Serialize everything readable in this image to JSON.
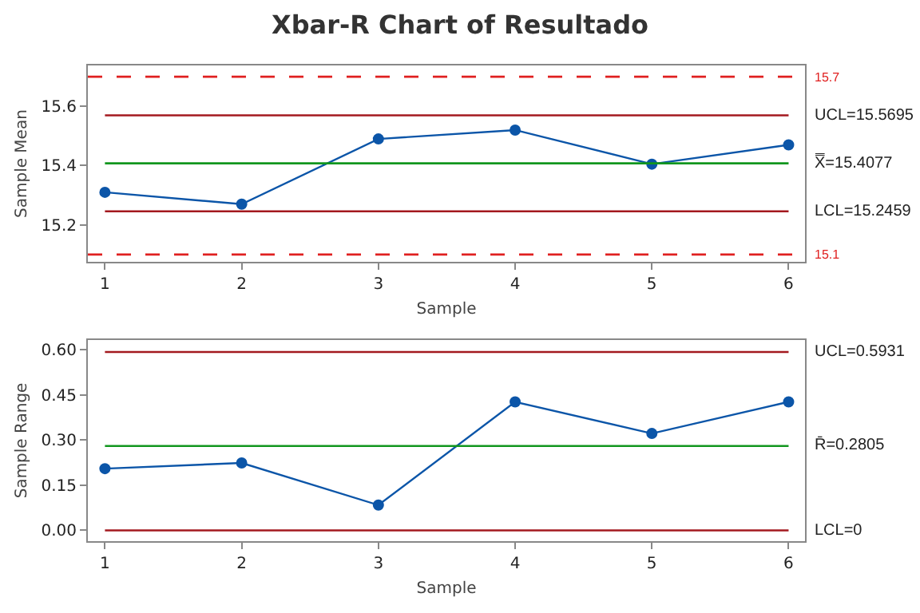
{
  "chart_data": [
    {
      "type": "line",
      "title": "Xbar-R Chart of Resultado",
      "xlabel": "Sample",
      "ylabel": "Sample Mean",
      "x": [
        1,
        2,
        3,
        4,
        5,
        6
      ],
      "series": [
        {
          "color": "#0b55a8",
          "values": [
            15.31,
            15.27,
            15.49,
            15.52,
            15.405,
            15.47
          ]
        }
      ],
      "xlim": [
        0.875,
        6.12
      ],
      "xticks": [
        1,
        2,
        3,
        4,
        5,
        6
      ],
      "ylim": [
        15.075,
        15.738
      ],
      "yticks": [
        15.2,
        15.4,
        15.6
      ],
      "marker": "circle",
      "line_style": "solid",
      "ref_lines": [
        {
          "axis": "y",
          "value": 15.7,
          "label": "15.7",
          "color": "#e02020",
          "line_style": "dashed"
        },
        {
          "axis": "y",
          "value": 15.5695,
          "label": "UCL=15.5695",
          "color": "#a3191f",
          "line_style": "solid"
        },
        {
          "axis": "y",
          "value": 15.4077,
          "label": "X̿=15.4077",
          "color": "#12961e",
          "line_style": "solid"
        },
        {
          "axis": "y",
          "value": 15.2459,
          "label": "LCL=15.2459",
          "color": "#a3191f",
          "line_style": "solid"
        },
        {
          "axis": "y",
          "value": 15.1,
          "label": "15.1",
          "color": "#e02020",
          "line_style": "dashed"
        }
      ]
    },
    {
      "type": "line",
      "xlabel": "Sample",
      "ylabel": "Sample Range",
      "x": [
        1,
        2,
        3,
        4,
        5,
        6
      ],
      "series": [
        {
          "color": "#0b55a8",
          "values": [
            0.205,
            0.224,
            0.084,
            0.427,
            0.322,
            0.427
          ]
        }
      ],
      "xlim": [
        0.875,
        6.12
      ],
      "xticks": [
        1,
        2,
        3,
        4,
        5,
        6
      ],
      "ylim": [
        -0.036,
        0.633
      ],
      "yticks": [
        {
          "value": 0,
          "label": "0.00"
        },
        {
          "value": 0.15,
          "label": "0.15"
        },
        {
          "value": 0.3,
          "label": "0.30"
        },
        {
          "value": 0.45,
          "label": "0.45"
        },
        {
          "value": 0.6,
          "label": "0.60"
        }
      ],
      "marker": "circle",
      "line_style": "solid",
      "ref_lines": [
        {
          "axis": "y",
          "value": 0.5931,
          "label": "UCL=0.5931",
          "color": "#a3191f",
          "line_style": "solid"
        },
        {
          "axis": "y",
          "value": 0.2805,
          "label": "R̄=0.2805",
          "color": "#12961e",
          "line_style": "solid"
        },
        {
          "axis": "y",
          "value": 0,
          "label": "LCL=0",
          "color": "#a3191f",
          "line_style": "solid"
        }
      ]
    }
  ]
}
